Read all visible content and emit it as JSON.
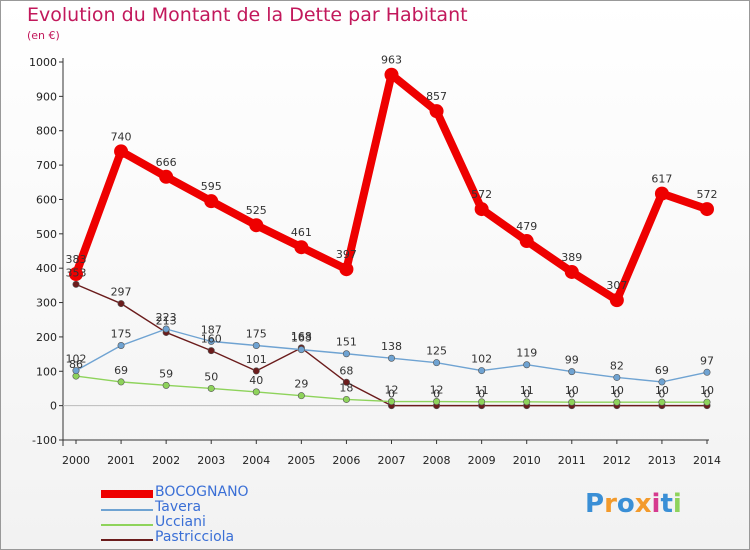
{
  "chart_data": {
    "type": "line",
    "title": "Evolution du Montant de la Dette par Habitant",
    "subtitle": "(en €)",
    "x": [
      "2000",
      "2001",
      "2002",
      "2003",
      "2004",
      "2005",
      "2006",
      "2007",
      "2008",
      "2009",
      "2010",
      "2011",
      "2012",
      "2013",
      "2014"
    ],
    "ylim": [
      -100,
      1000
    ],
    "yticks": [
      -100,
      0,
      100,
      200,
      300,
      400,
      500,
      600,
      700,
      800,
      900,
      1000
    ],
    "grid": false,
    "legend_position": "bottom-left",
    "series": [
      {
        "name": "BOCOGNANO",
        "color": "#ee0000",
        "values": [
          383,
          740,
          666,
          595,
          525,
          461,
          397,
          963,
          857,
          572,
          479,
          389,
          307,
          617,
          572
        ]
      },
      {
        "name": "Tavera",
        "color": "#6fa3d2",
        "values": [
          102,
          175,
          223,
          187,
          175,
          163,
          151,
          138,
          125,
          102,
          119,
          99,
          82,
          69,
          97
        ]
      },
      {
        "name": "Ucciani",
        "color": "#8ed35b",
        "values": [
          86,
          69,
          59,
          50,
          40,
          29,
          18,
          12,
          12,
          11,
          11,
          10,
          10,
          10,
          10
        ]
      },
      {
        "name": "Pastricciola",
        "color": "#6b1c1c",
        "values": [
          353,
          297,
          213,
          160,
          101,
          168,
          68,
          0,
          0,
          0,
          0,
          0,
          0,
          0,
          0
        ]
      }
    ]
  },
  "logo": {
    "letters": [
      "P",
      "r",
      "o",
      "x",
      "i",
      "t",
      "i"
    ],
    "colors": [
      "#3a8fd6",
      "#f39a2b",
      "#3a8fd6",
      "#f39a2b",
      "#d63a8f",
      "#3a8fd6",
      "#8ed35b"
    ]
  }
}
